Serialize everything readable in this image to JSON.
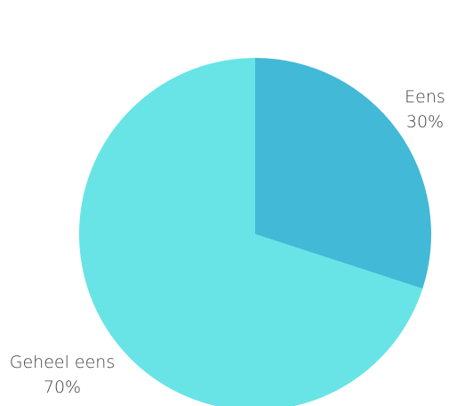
{
  "chart_data": {
    "type": "pie",
    "title": "",
    "slices": [
      {
        "label": "Eens",
        "value": 30,
        "value_label": "30%",
        "color": "#42B9D6"
      },
      {
        "label": "Geheel eens",
        "value": 70,
        "value_label": "70%",
        "color": "#68E4E6"
      }
    ],
    "start_angle": "12 o'clock",
    "direction": "clockwise",
    "legend": "none",
    "labels": "outside slices"
  }
}
